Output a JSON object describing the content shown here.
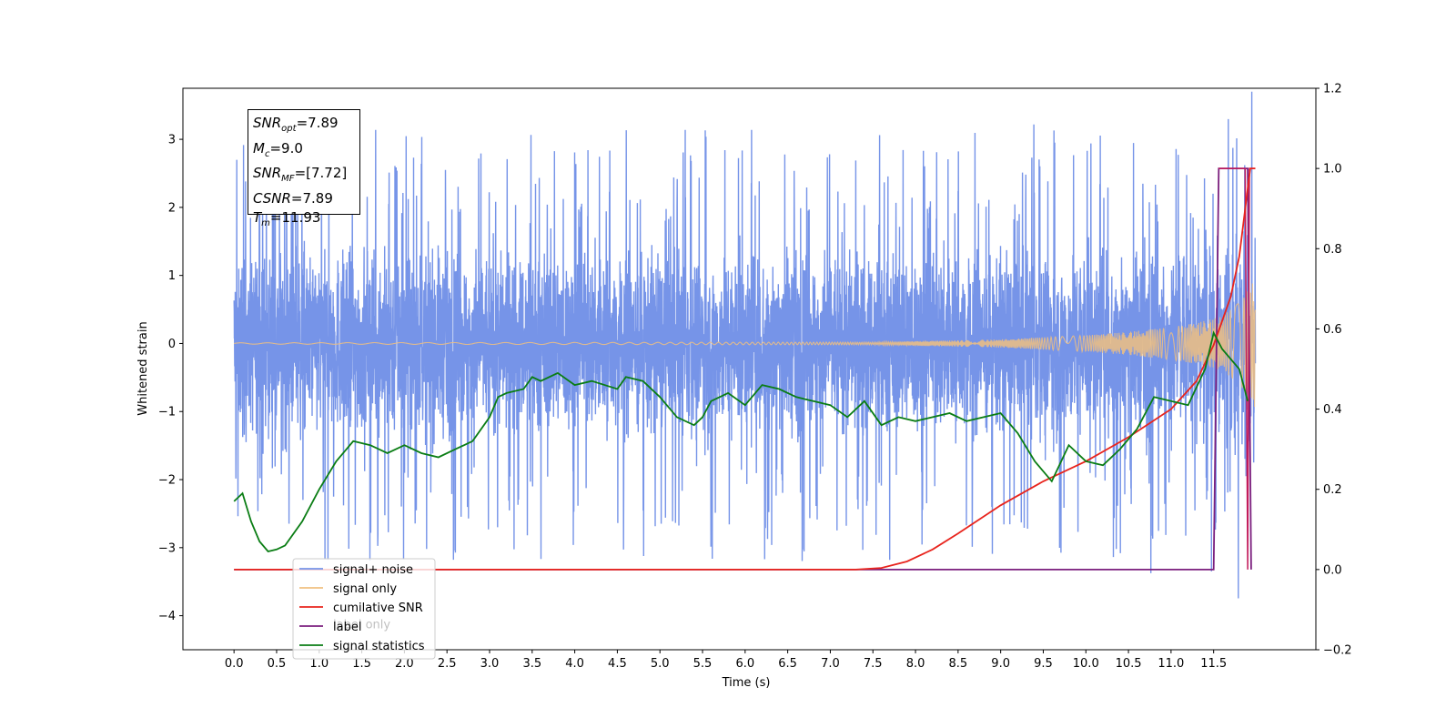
{
  "chart_data": {
    "type": "line",
    "xlabel": "Time (s)",
    "ylabel": "Whitened strain",
    "ylabel_right": "",
    "xlim": [
      -0.6,
      12.7
    ],
    "ylim": [
      -4.5,
      3.75
    ],
    "ylim_right": [
      -0.2,
      1.2
    ],
    "xticks": [
      "0.0",
      "0.5",
      "1.0",
      "1.5",
      "2.0",
      "2.5",
      "3.0",
      "3.5",
      "4.0",
      "4.5",
      "5.0",
      "5.5",
      "6.0",
      "6.5",
      "7.0",
      "7.5",
      "8.0",
      "8.5",
      "9.0",
      "9.5",
      "10.0",
      "10.5",
      "11.0",
      "11.5"
    ],
    "yticks": [
      "3",
      "2",
      "1",
      "0",
      "−1",
      "−2",
      "−3",
      "−4"
    ],
    "yticks_right": [
      "1.2",
      "1.0",
      "0.8",
      "0.6",
      "0.4",
      "0.2",
      "0.0",
      "−0.2"
    ],
    "annotation": {
      "snr_opt_sym": "SNR",
      "snr_opt_sub": "opt",
      "snr_opt_val": "=7.89",
      "mc_sym": "M",
      "mc_sub": "c",
      "mc_val": "=9.0",
      "snr_mf_sym": "SNR",
      "snr_mf_sub": "MF",
      "snr_mf_val": "=[7.72]",
      "csnr_sym": "CSNR",
      "csnr_val": "=7.89",
      "tm_sym": "T",
      "tm_sub": "m",
      "tm_val": "=11.93"
    },
    "legend": {
      "placement": "lower-left",
      "entries": [
        "signal+ noise",
        "signal only",
        "cumilative SNR",
        "label",
        "signal statistics"
      ],
      "hidden_behind_text": "label only"
    },
    "series": [
      {
        "name": "signal+ noise",
        "axis": "left",
        "color": "#7694e8",
        "x_range": [
          0.0,
          11.99
        ],
        "amplitude_bands": {
          "dense": 1.3,
          "peaks": 3.38,
          "min_observed": -3.82
        }
      },
      {
        "name": "signal only",
        "axis": "left",
        "color": "#f0c080",
        "envelope": {
          "x": [
            0.0,
            7.5,
            9.0,
            10.0,
            10.5,
            11.0,
            11.3,
            11.6,
            11.8,
            11.99
          ],
          "amp": [
            0.01,
            0.02,
            0.06,
            0.12,
            0.17,
            0.24,
            0.3,
            0.4,
            0.6,
            0.95
          ]
        }
      },
      {
        "name": "cumilative SNR",
        "axis": "right",
        "color": "#e8241d",
        "x": [
          0.0,
          7.3,
          7.6,
          7.9,
          8.2,
          8.5,
          9.0,
          9.5,
          10.0,
          10.5,
          11.0,
          11.3,
          11.5,
          11.7,
          11.8,
          11.9,
          11.93,
          11.99
        ],
        "y": [
          0.0,
          0.0,
          0.004,
          0.02,
          0.05,
          0.09,
          0.16,
          0.22,
          0.27,
          0.33,
          0.4,
          0.47,
          0.56,
          0.68,
          0.78,
          0.95,
          1.0,
          1.0
        ]
      },
      {
        "name": "label",
        "axis": "right",
        "color": "#7b1f7e",
        "x": [
          0.0,
          11.5,
          11.56,
          11.9,
          11.94
        ],
        "y": [
          0.0,
          0.0,
          1.0,
          1.0,
          0.0
        ]
      },
      {
        "name": "label only",
        "axis": "right",
        "color": "#c21a5a",
        "x": [
          11.56,
          11.6,
          11.87,
          11.9,
          11.92,
          11.99
        ],
        "y": [
          1.0,
          1.0,
          1.0,
          0.0,
          1.0,
          1.0
        ]
      },
      {
        "name": "signal statistics",
        "axis": "right",
        "color": "#0a7d14",
        "x": [
          0.0,
          0.1,
          0.2,
          0.3,
          0.4,
          0.5,
          0.6,
          0.8,
          1.0,
          1.2,
          1.4,
          1.6,
          1.8,
          2.0,
          2.2,
          2.4,
          2.6,
          2.8,
          3.0,
          3.1,
          3.2,
          3.4,
          3.5,
          3.6,
          3.8,
          4.0,
          4.2,
          4.5,
          4.6,
          4.8,
          5.0,
          5.2,
          5.4,
          5.5,
          5.6,
          5.8,
          6.0,
          6.2,
          6.4,
          6.6,
          6.8,
          7.0,
          7.2,
          7.4,
          7.6,
          7.8,
          8.0,
          8.2,
          8.4,
          8.6,
          8.8,
          9.0,
          9.2,
          9.4,
          9.6,
          9.8,
          10.0,
          10.2,
          10.4,
          10.6,
          10.8,
          11.0,
          11.2,
          11.4,
          11.5,
          11.6,
          11.8,
          11.9
        ],
        "y": [
          0.17,
          0.19,
          0.12,
          0.07,
          0.045,
          0.05,
          0.06,
          0.12,
          0.2,
          0.27,
          0.32,
          0.31,
          0.29,
          0.31,
          0.29,
          0.28,
          0.3,
          0.32,
          0.38,
          0.43,
          0.44,
          0.45,
          0.48,
          0.47,
          0.49,
          0.46,
          0.47,
          0.45,
          0.48,
          0.47,
          0.43,
          0.38,
          0.36,
          0.38,
          0.42,
          0.44,
          0.41,
          0.46,
          0.45,
          0.43,
          0.42,
          0.41,
          0.38,
          0.42,
          0.36,
          0.38,
          0.37,
          0.38,
          0.39,
          0.37,
          0.38,
          0.39,
          0.34,
          0.27,
          0.22,
          0.31,
          0.27,
          0.26,
          0.3,
          0.35,
          0.43,
          0.42,
          0.41,
          0.5,
          0.59,
          0.55,
          0.5,
          0.42
        ]
      }
    ]
  }
}
